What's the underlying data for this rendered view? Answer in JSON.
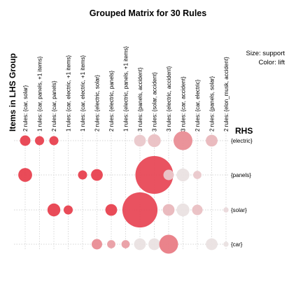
{
  "chart_data": {
    "type": "grouped-matrix",
    "title": "Grouped Matrix for 30 Rules",
    "ylabel": "Items in LHS Group",
    "rhs_label": "RHS",
    "size_label": "Size: support",
    "color_label": "Color: lift",
    "lhs_groups": [
      "2 rules: {car, solar}",
      "1 rules: {car, panels, +1 items}",
      "2 rules: {car, panels}",
      "1 rules: {car, electric, +1 items}",
      "1 rules: {car, electric, +1 items}",
      "2 rules: {electric, solar}",
      "2 rules: {electric, panels}",
      "1 rules: {electric, panels, +1 items}",
      "3 rules: {panels, accident}",
      "3 rules: {solar, accident}",
      "3 rules: {electric, accident}",
      "3 rules: {car, accident}",
      "2 rules: {car, electric}",
      "2 rules: {panels, solar}",
      "2 rules: {elon_musk, accident}"
    ],
    "rhs_items": [
      "{electric}",
      "{panels}",
      "{solar}",
      "{car}"
    ],
    "cells": [
      {
        "lhs": 0,
        "rhs": 0,
        "support": 0.04,
        "lift": 1.0
      },
      {
        "lhs": 1,
        "rhs": 0,
        "support": 0.03,
        "lift": 1.0
      },
      {
        "lhs": 2,
        "rhs": 0,
        "support": 0.03,
        "lift": 1.0
      },
      {
        "lhs": 8,
        "rhs": 0,
        "support": 0.05,
        "lift": 0.2
      },
      {
        "lhs": 9,
        "rhs": 0,
        "support": 0.06,
        "lift": 0.25
      },
      {
        "lhs": 11,
        "rhs": 0,
        "support": 0.13,
        "lift": 0.55
      },
      {
        "lhs": 13,
        "rhs": 0,
        "support": 0.05,
        "lift": 0.3
      },
      {
        "lhs": 0,
        "rhs": 1,
        "support": 0.07,
        "lift": 1.0
      },
      {
        "lhs": 4,
        "rhs": 1,
        "support": 0.03,
        "lift": 1.0
      },
      {
        "lhs": 5,
        "rhs": 1,
        "support": 0.05,
        "lift": 1.0
      },
      {
        "lhs": 9,
        "rhs": 1,
        "support": 0.52,
        "lift": 0.95
      },
      {
        "lhs": 10,
        "rhs": 1,
        "support": 0.04,
        "lift": 0.2
      },
      {
        "lhs": 11,
        "rhs": 1,
        "support": 0.06,
        "lift": 0.05
      },
      {
        "lhs": 12,
        "rhs": 1,
        "support": 0.025,
        "lift": 0.2
      },
      {
        "lhs": 2,
        "rhs": 2,
        "support": 0.06,
        "lift": 1.0
      },
      {
        "lhs": 3,
        "rhs": 2,
        "support": 0.03,
        "lift": 1.0
      },
      {
        "lhs": 6,
        "rhs": 2,
        "support": 0.05,
        "lift": 1.0
      },
      {
        "lhs": 8,
        "rhs": 2,
        "support": 0.45,
        "lift": 0.95
      },
      {
        "lhs": 10,
        "rhs": 2,
        "support": 0.05,
        "lift": 0.3
      },
      {
        "lhs": 11,
        "rhs": 2,
        "support": 0.06,
        "lift": 0.05
      },
      {
        "lhs": 12,
        "rhs": 2,
        "support": 0.04,
        "lift": 0.25
      },
      {
        "lhs": 14,
        "rhs": 2,
        "support": 0.01,
        "lift": 0.1
      },
      {
        "lhs": 5,
        "rhs": 3,
        "support": 0.04,
        "lift": 0.55
      },
      {
        "lhs": 6,
        "rhs": 3,
        "support": 0.025,
        "lift": 0.45
      },
      {
        "lhs": 7,
        "rhs": 3,
        "support": 0.025,
        "lift": 0.45
      },
      {
        "lhs": 8,
        "rhs": 3,
        "support": 0.05,
        "lift": 0.05
      },
      {
        "lhs": 9,
        "rhs": 3,
        "support": 0.05,
        "lift": 0.05
      },
      {
        "lhs": 10,
        "rhs": 3,
        "support": 0.13,
        "lift": 0.65
      },
      {
        "lhs": 13,
        "rhs": 3,
        "support": 0.05,
        "lift": 0.05
      },
      {
        "lhs": 14,
        "rhs": 3,
        "support": 0.01,
        "lift": 0.05
      }
    ],
    "colors": {
      "high": "#e8414f",
      "low": "#eaeaea",
      "grid": "#c8c8c8",
      "text": "#000000"
    }
  }
}
